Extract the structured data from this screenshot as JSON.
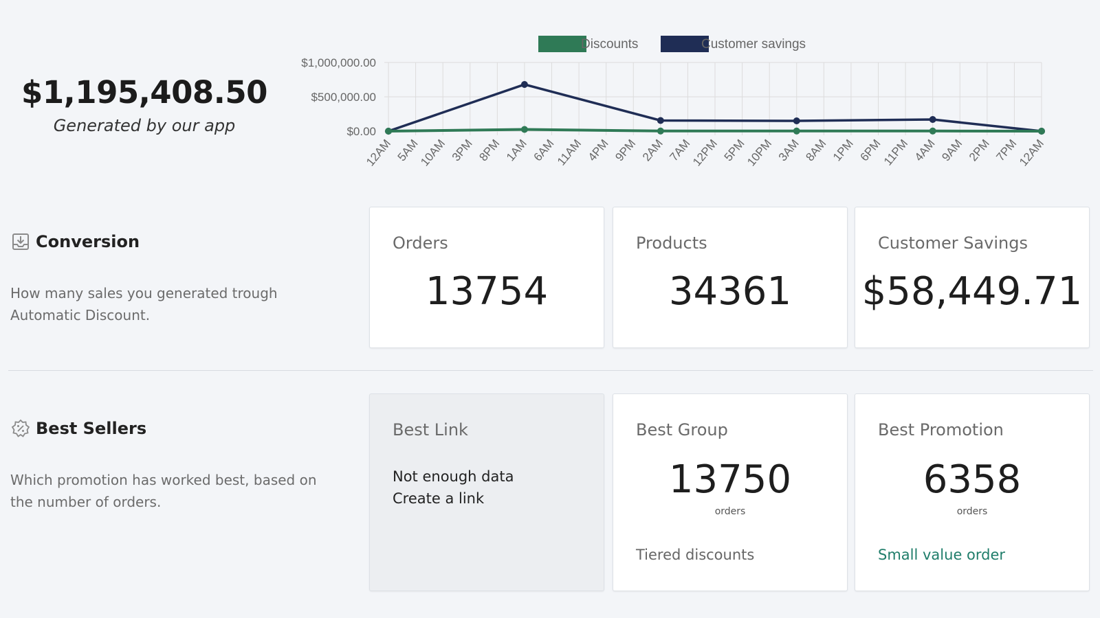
{
  "hero": {
    "amount": "$1,195,408.50",
    "subtitle": "Generated by our app"
  },
  "chart_data": {
    "type": "line",
    "legend": [
      "Discounts",
      "Customer savings"
    ],
    "legend_position": "top-center",
    "y_ticks": [
      "$1,000,000.00",
      "$500,000.00",
      "$0.00"
    ],
    "ylim": [
      0,
      1000000
    ],
    "grid": true,
    "categories": [
      "12AM",
      "5AM",
      "10AM",
      "3PM",
      "8PM",
      "1AM",
      "6AM",
      "11AM",
      "4PM",
      "9PM",
      "2AM",
      "7AM",
      "12PM",
      "5PM",
      "10PM",
      "3AM",
      "8AM",
      "1PM",
      "6PM",
      "11PM",
      "4AM",
      "9AM",
      "2PM",
      "7PM",
      "12AM"
    ],
    "series": [
      {
        "name": "Discounts",
        "color": "#2f7a56",
        "points": [
          [
            0,
            0
          ],
          [
            5,
            25000
          ],
          [
            10,
            2000
          ],
          [
            15,
            2000
          ],
          [
            20,
            2000
          ],
          [
            24,
            0
          ]
        ]
      },
      {
        "name": "Customer savings",
        "color": "#1f2d55",
        "points": [
          [
            0,
            0
          ],
          [
            5,
            680000
          ],
          [
            10,
            155000
          ],
          [
            15,
            150000
          ],
          [
            20,
            170000
          ],
          [
            24,
            0
          ]
        ]
      }
    ]
  },
  "conversion": {
    "title": "Conversion",
    "icon": "inbox-download-icon",
    "description": "How many sales you generated trough Automatic Discount.",
    "cards": [
      {
        "title": "Orders",
        "value": "13754"
      },
      {
        "title": "Products",
        "value": "34361"
      },
      {
        "title": "Customer Savings",
        "value": "$58,449.71"
      }
    ]
  },
  "best_sellers": {
    "title": "Best Sellers",
    "icon": "discount-badge-icon",
    "description": "Which promotion has worked best, based on the number of orders.",
    "best_link": {
      "title": "Best Link",
      "message": "Not enough data",
      "action": "Create a link"
    },
    "best_group": {
      "title": "Best Group",
      "value": "13750",
      "unit": "orders",
      "name": "Tiered discounts"
    },
    "best_promotion": {
      "title": "Best Promotion",
      "value": "6358",
      "unit": "orders",
      "name": "Small value order"
    }
  }
}
